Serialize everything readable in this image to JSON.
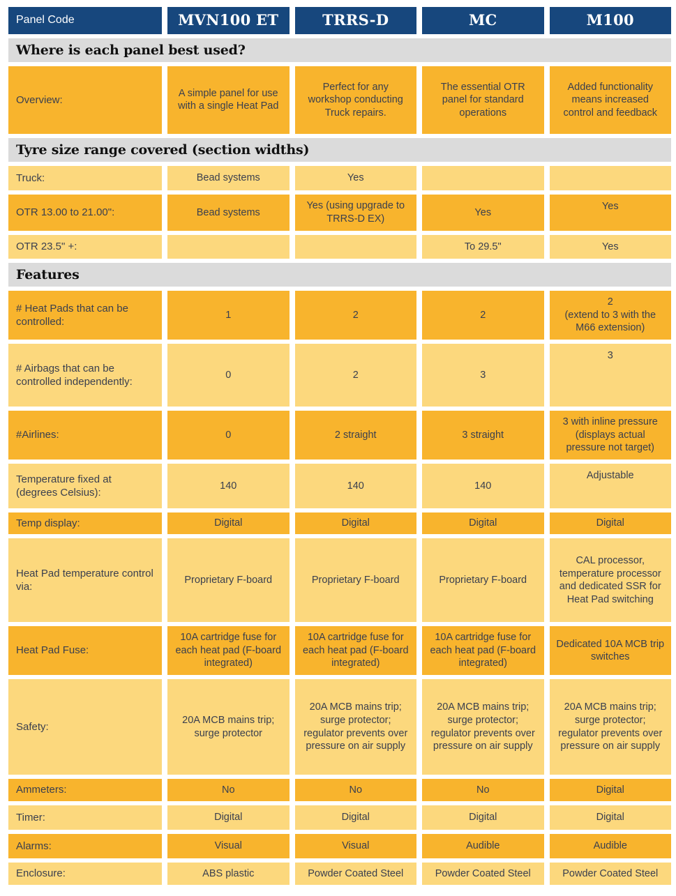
{
  "colors": {
    "header_navy": "#17477d",
    "row_gold": "#f8b42d",
    "row_light_yellow": "#fcd87d",
    "section_bar_gray": "#dbdbdb",
    "cell_text": "#3a3f4e",
    "header_text": "#ffffff"
  },
  "table": {
    "header": {
      "label": "Panel Code",
      "columns": [
        "MVN100 ET",
        "TRRS-D",
        "MC",
        "M100"
      ]
    },
    "sections": [
      {
        "title": "Where is each panel best used?",
        "rows": [
          {
            "label": "Overview:",
            "cells": [
              "A simple panel for use with a single Heat Pad",
              "Perfect for any workshop conducting Truck repairs.",
              "The essential OTR panel for standard operations",
              "Added functionality means increased control and feedback"
            ]
          }
        ]
      },
      {
        "title": "Tyre size range covered (section widths)",
        "rows": [
          {
            "label": "Truck:",
            "cells": [
              "Bead systems",
              "Yes",
              "",
              ""
            ]
          },
          {
            "label": "OTR 13.00 to 21.00\":",
            "cells": [
              "Bead systems",
              "Yes (using upgrade to TRRS-D EX)",
              "Yes",
              "Yes"
            ]
          },
          {
            "label": "OTR 23.5\" +:",
            "cells": [
              "",
              "",
              "To 29.5\"",
              "Yes"
            ]
          }
        ]
      },
      {
        "title": "Features",
        "rows": [
          {
            "label": "# Heat Pads that can be controlled:",
            "cells": [
              "1",
              "2",
              "2",
              "2\n(extend to 3 with the M66 extension)"
            ]
          },
          {
            "label": "# Airbags that can be controlled independently:",
            "cells": [
              "0",
              "2",
              "3",
              "3"
            ]
          },
          {
            "label": "#Airlines:",
            "cells": [
              "0",
              "2 straight",
              "3 straight",
              "3 with inline pressure (displays actual pressure not target)"
            ]
          },
          {
            "label": "Temperature fixed at (degrees Celsius):",
            "cells": [
              "140",
              "140",
              "140",
              "Adjustable"
            ]
          },
          {
            "label": "Temp display:",
            "cells": [
              "Digital",
              "Digital",
              "Digital",
              "Digital"
            ]
          },
          {
            "label": "Heat Pad temperature control via:",
            "cells": [
              "Proprietary F-board",
              "Proprietary F-board",
              "Proprietary F-board",
              "CAL processor, temperature processor and dedicated SSR for Heat Pad switching"
            ]
          },
          {
            "label": "Heat Pad Fuse:",
            "cells": [
              "10A cartridge fuse for each heat pad (F-board integrated)",
              "10A cartridge fuse for each heat pad (F-board integrated)",
              "10A cartridge fuse for each heat pad (F-board integrated)",
              "Dedicated 10A MCB trip switches"
            ]
          },
          {
            "label": "Safety:",
            "cells": [
              "20A MCB mains trip; surge protector",
              "20A MCB mains trip; surge protector; regulator prevents over pressure on air supply",
              "20A MCB mains trip; surge protector; regulator prevents over pressure on air supply",
              "20A MCB mains trip; surge protector; regulator prevents over pressure on air supply"
            ]
          },
          {
            "label": "Ammeters:",
            "cells": [
              "No",
              "No",
              "No",
              "Digital"
            ]
          },
          {
            "label": "Timer:",
            "cells": [
              "Digital",
              "Digital",
              "Digital",
              "Digital"
            ]
          },
          {
            "label": "Alarms:",
            "cells": [
              "Visual",
              "Visual",
              "Audible",
              "Audible"
            ]
          },
          {
            "label": "Enclosure:",
            "cells": [
              "ABS plastic",
              "Powder Coated Steel",
              "Powder Coated Steel",
              "Powder Coated Steel"
            ]
          }
        ]
      }
    ]
  }
}
